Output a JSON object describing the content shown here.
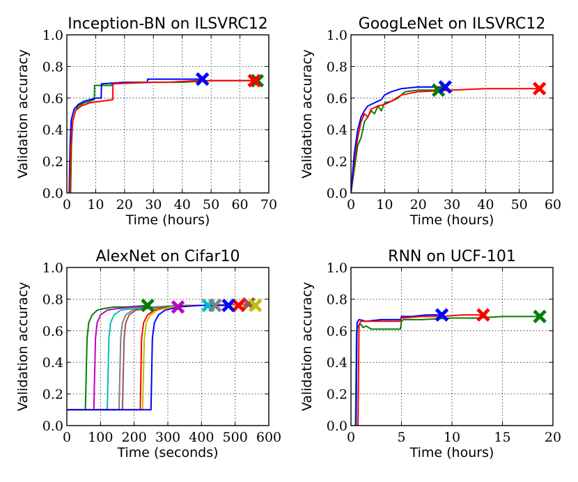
{
  "figure_ylabel": "Validation accuracy",
  "colors": {
    "blue": "#0000ff",
    "green": "#007f00",
    "red": "#ff0000",
    "magenta": "#bf00bf",
    "cyan": "#00bfbf",
    "gray": "#808080",
    "olive": "#bfbf00",
    "brown": "#a05050"
  },
  "chart_data": [
    {
      "type": "line",
      "title": "Inception-BN on ILSVRC12",
      "xlabel": "Time (hours)",
      "ylabel": "Validation accuracy",
      "xlim": [
        0,
        70
      ],
      "ylim": [
        0,
        1.0
      ],
      "xticks": [
        0,
        10,
        20,
        30,
        40,
        50,
        60,
        70
      ],
      "yticks": [
        0.0,
        0.2,
        0.4,
        0.6,
        0.8,
        1.0
      ],
      "xtick_labels": [
        "0",
        "10",
        "20",
        "30",
        "40",
        "50",
        "60",
        "70"
      ],
      "ytick_labels": [
        "0.0",
        "0.2",
        "0.4",
        "0.6",
        "0.8",
        "1.0"
      ],
      "grid": true,
      "series": [
        {
          "name": "green",
          "color": "green",
          "x": [
            1.3,
            1.6,
            2,
            3,
            4,
            6,
            8,
            9.5,
            9.6,
            12,
            14,
            15.5,
            15.6,
            30,
            40,
            50,
            60,
            66
          ],
          "y": [
            0,
            0.3,
            0.45,
            0.52,
            0.55,
            0.57,
            0.58,
            0.59,
            0.68,
            0.68,
            0.68,
            0.68,
            0.69,
            0.7,
            0.7,
            0.71,
            0.71,
            0.71
          ],
          "end_marker": [
            66,
            0.71
          ]
        },
        {
          "name": "blue",
          "color": "blue",
          "x": [
            0.8,
            1.1,
            1.5,
            2.5,
            4,
            6,
            8,
            10,
            11.9,
            12,
            20,
            27.9,
            28,
            35,
            40,
            47
          ],
          "y": [
            0,
            0.3,
            0.46,
            0.53,
            0.56,
            0.58,
            0.59,
            0.6,
            0.6,
            0.69,
            0.7,
            0.7,
            0.72,
            0.72,
            0.72,
            0.72
          ],
          "end_marker": [
            47,
            0.72
          ]
        },
        {
          "name": "red",
          "color": "red",
          "x": [
            1.0,
            1.4,
            2,
            3,
            5,
            8,
            12,
            15.9,
            16,
            25,
            35,
            45,
            55,
            65
          ],
          "y": [
            0,
            0.3,
            0.45,
            0.52,
            0.55,
            0.57,
            0.58,
            0.59,
            0.69,
            0.7,
            0.7,
            0.71,
            0.71,
            0.71
          ],
          "end_marker": [
            65,
            0.71
          ]
        }
      ]
    },
    {
      "type": "line",
      "title": "GoogLeNet on ILSVRC12",
      "xlabel": "Time (hours)",
      "ylabel": "Validation accuracy",
      "xlim": [
        0,
        60
      ],
      "ylim": [
        0,
        1.0
      ],
      "xticks": [
        0,
        10,
        20,
        30,
        40,
        50,
        60
      ],
      "yticks": [
        0.0,
        0.2,
        0.4,
        0.6,
        0.8,
        1.0
      ],
      "xtick_labels": [
        "0",
        "10",
        "20",
        "30",
        "40",
        "50",
        "60"
      ],
      "ytick_labels": [
        "0.0",
        "0.2",
        "0.4",
        "0.6",
        "0.8",
        "1.0"
      ],
      "grid": true,
      "series": [
        {
          "name": "green",
          "color": "green",
          "x": [
            0,
            1,
            2,
            3,
            4,
            5,
            6,
            7,
            8,
            9,
            10,
            12,
            14,
            16,
            20,
            26
          ],
          "y": [
            0,
            0.15,
            0.3,
            0.35,
            0.45,
            0.48,
            0.52,
            0.5,
            0.55,
            0.52,
            0.57,
            0.58,
            0.6,
            0.64,
            0.65,
            0.65
          ],
          "end_marker": [
            26,
            0.65
          ]
        },
        {
          "name": "red",
          "color": "red",
          "x": [
            0,
            1,
            2,
            3,
            4,
            5,
            6,
            8,
            10,
            12,
            15,
            20,
            30,
            40,
            50,
            56
          ],
          "y": [
            0,
            0.2,
            0.35,
            0.45,
            0.5,
            0.48,
            0.53,
            0.55,
            0.56,
            0.58,
            0.62,
            0.64,
            0.65,
            0.66,
            0.66,
            0.66
          ],
          "end_marker": [
            56,
            0.66
          ]
        },
        {
          "name": "blue",
          "color": "blue",
          "x": [
            0,
            1,
            2,
            3,
            4,
            5,
            6,
            7,
            8,
            9,
            10,
            12,
            15,
            20,
            25,
            28
          ],
          "y": [
            0,
            0.25,
            0.4,
            0.48,
            0.52,
            0.55,
            0.56,
            0.57,
            0.58,
            0.59,
            0.62,
            0.64,
            0.66,
            0.67,
            0.67,
            0.67
          ],
          "end_marker": [
            28,
            0.67
          ]
        }
      ]
    },
    {
      "type": "line",
      "title": "AlexNet on Cifar10",
      "xlabel": "Time (seconds)",
      "ylabel": "Validation accuracy",
      "xlim": [
        0,
        600
      ],
      "ylim": [
        0,
        1.0
      ],
      "xticks": [
        0,
        100,
        200,
        300,
        400,
        500,
        600
      ],
      "yticks": [
        0.0,
        0.2,
        0.4,
        0.6,
        0.8,
        1.0
      ],
      "xtick_labels": [
        "0",
        "100",
        "200",
        "300",
        "400",
        "500",
        "600"
      ],
      "ytick_labels": [
        "0.0",
        "0.2",
        "0.4",
        "0.6",
        "0.8",
        "1.0"
      ],
      "grid": true,
      "series": [
        {
          "name": "green",
          "color": "green",
          "x": [
            0,
            55,
            60,
            65,
            75,
            90,
            110,
            140,
            180,
            240
          ],
          "y": [
            0.1,
            0.1,
            0.55,
            0.65,
            0.7,
            0.73,
            0.74,
            0.75,
            0.75,
            0.76
          ],
          "end_marker": [
            240,
            0.76
          ]
        },
        {
          "name": "magenta",
          "color": "magenta",
          "x": [
            0,
            80,
            85,
            90,
            100,
            120,
            150,
            200,
            260,
            330
          ],
          "y": [
            0.1,
            0.1,
            0.55,
            0.65,
            0.7,
            0.73,
            0.74,
            0.75,
            0.75,
            0.75
          ],
          "end_marker": [
            330,
            0.75
          ]
        },
        {
          "name": "cyan",
          "color": "cyan",
          "x": [
            0,
            120,
            125,
            130,
            140,
            160,
            200,
            260,
            330,
            420
          ],
          "y": [
            0.1,
            0.1,
            0.55,
            0.65,
            0.7,
            0.73,
            0.74,
            0.75,
            0.76,
            0.76
          ],
          "end_marker": [
            420,
            0.76
          ]
        },
        {
          "name": "gray",
          "color": "gray",
          "x": [
            0,
            155,
            160,
            165,
            175,
            195,
            230,
            290,
            360,
            440
          ],
          "y": [
            0.1,
            0.1,
            0.55,
            0.65,
            0.7,
            0.73,
            0.74,
            0.75,
            0.76,
            0.76
          ],
          "end_marker": [
            440,
            0.76
          ]
        },
        {
          "name": "brown",
          "color": "brown",
          "x": [
            0,
            165,
            170,
            175,
            185,
            205,
            240,
            300,
            400,
            540
          ],
          "y": [
            0.1,
            0.1,
            0.55,
            0.65,
            0.7,
            0.73,
            0.74,
            0.75,
            0.76,
            0.77
          ],
          "end_marker": [
            540,
            0.77
          ]
        },
        {
          "name": "red",
          "color": "red",
          "x": [
            0,
            218,
            222,
            228,
            240,
            260,
            300,
            360,
            430,
            510
          ],
          "y": [
            0.1,
            0.1,
            0.55,
            0.65,
            0.7,
            0.73,
            0.75,
            0.76,
            0.76,
            0.76
          ],
          "end_marker": [
            510,
            0.76
          ]
        },
        {
          "name": "olive",
          "color": "olive",
          "x": [
            0,
            225,
            230,
            236,
            248,
            270,
            310,
            380,
            460,
            560
          ],
          "y": [
            0.1,
            0.1,
            0.55,
            0.65,
            0.7,
            0.73,
            0.75,
            0.76,
            0.76,
            0.76
          ],
          "end_marker": [
            560,
            0.76
          ]
        },
        {
          "name": "blue",
          "color": "blue",
          "x": [
            0,
            250,
            254,
            260,
            272,
            292,
            330,
            390,
            440,
            480
          ],
          "y": [
            0.1,
            0.1,
            0.55,
            0.65,
            0.7,
            0.73,
            0.75,
            0.76,
            0.76,
            0.76
          ],
          "end_marker": [
            480,
            0.76
          ]
        }
      ]
    },
    {
      "type": "line",
      "title": "RNN on UCF-101",
      "xlabel": "Time (hours)",
      "ylabel": "Validation accuracy",
      "xlim": [
        0,
        20
      ],
      "ylim": [
        0,
        1.0
      ],
      "xticks": [
        0,
        5,
        10,
        15,
        20
      ],
      "yticks": [
        0.0,
        0.2,
        0.4,
        0.6,
        0.8,
        1.0
      ],
      "xtick_labels": [
        "0",
        "5",
        "10",
        "15",
        "20"
      ],
      "ytick_labels": [
        "0.0",
        "0.2",
        "0.4",
        "0.6",
        "0.8",
        "1.0"
      ],
      "grid": true,
      "series": [
        {
          "name": "green",
          "color": "green",
          "x": [
            0.45,
            0.55,
            0.7,
            1.0,
            1.2,
            1.5,
            2,
            3,
            4,
            4.9,
            5.0,
            5.2,
            7,
            10,
            12.5,
            15,
            18.7
          ],
          "y": [
            0,
            0.6,
            0.63,
            0.64,
            0.62,
            0.63,
            0.61,
            0.61,
            0.61,
            0.61,
            0.66,
            0.67,
            0.67,
            0.68,
            0.68,
            0.69,
            0.69
          ],
          "end_marker": [
            18.7,
            0.69
          ]
        },
        {
          "name": "blue",
          "color": "blue",
          "x": [
            0.5,
            0.6,
            0.8,
            1.5,
            3,
            4.9,
            5.0,
            6,
            7.5,
            9
          ],
          "y": [
            0,
            0.65,
            0.67,
            0.66,
            0.67,
            0.67,
            0.69,
            0.69,
            0.7,
            0.7
          ],
          "end_marker": [
            9,
            0.7
          ]
        },
        {
          "name": "red",
          "color": "red",
          "x": [
            0.7,
            0.8,
            1.0,
            2,
            3.5,
            4.9,
            5.0,
            7,
            9,
            11,
            13.1
          ],
          "y": [
            0,
            0.64,
            0.66,
            0.66,
            0.66,
            0.66,
            0.68,
            0.69,
            0.69,
            0.7,
            0.7
          ],
          "end_marker": [
            13.1,
            0.7
          ]
        }
      ]
    }
  ]
}
